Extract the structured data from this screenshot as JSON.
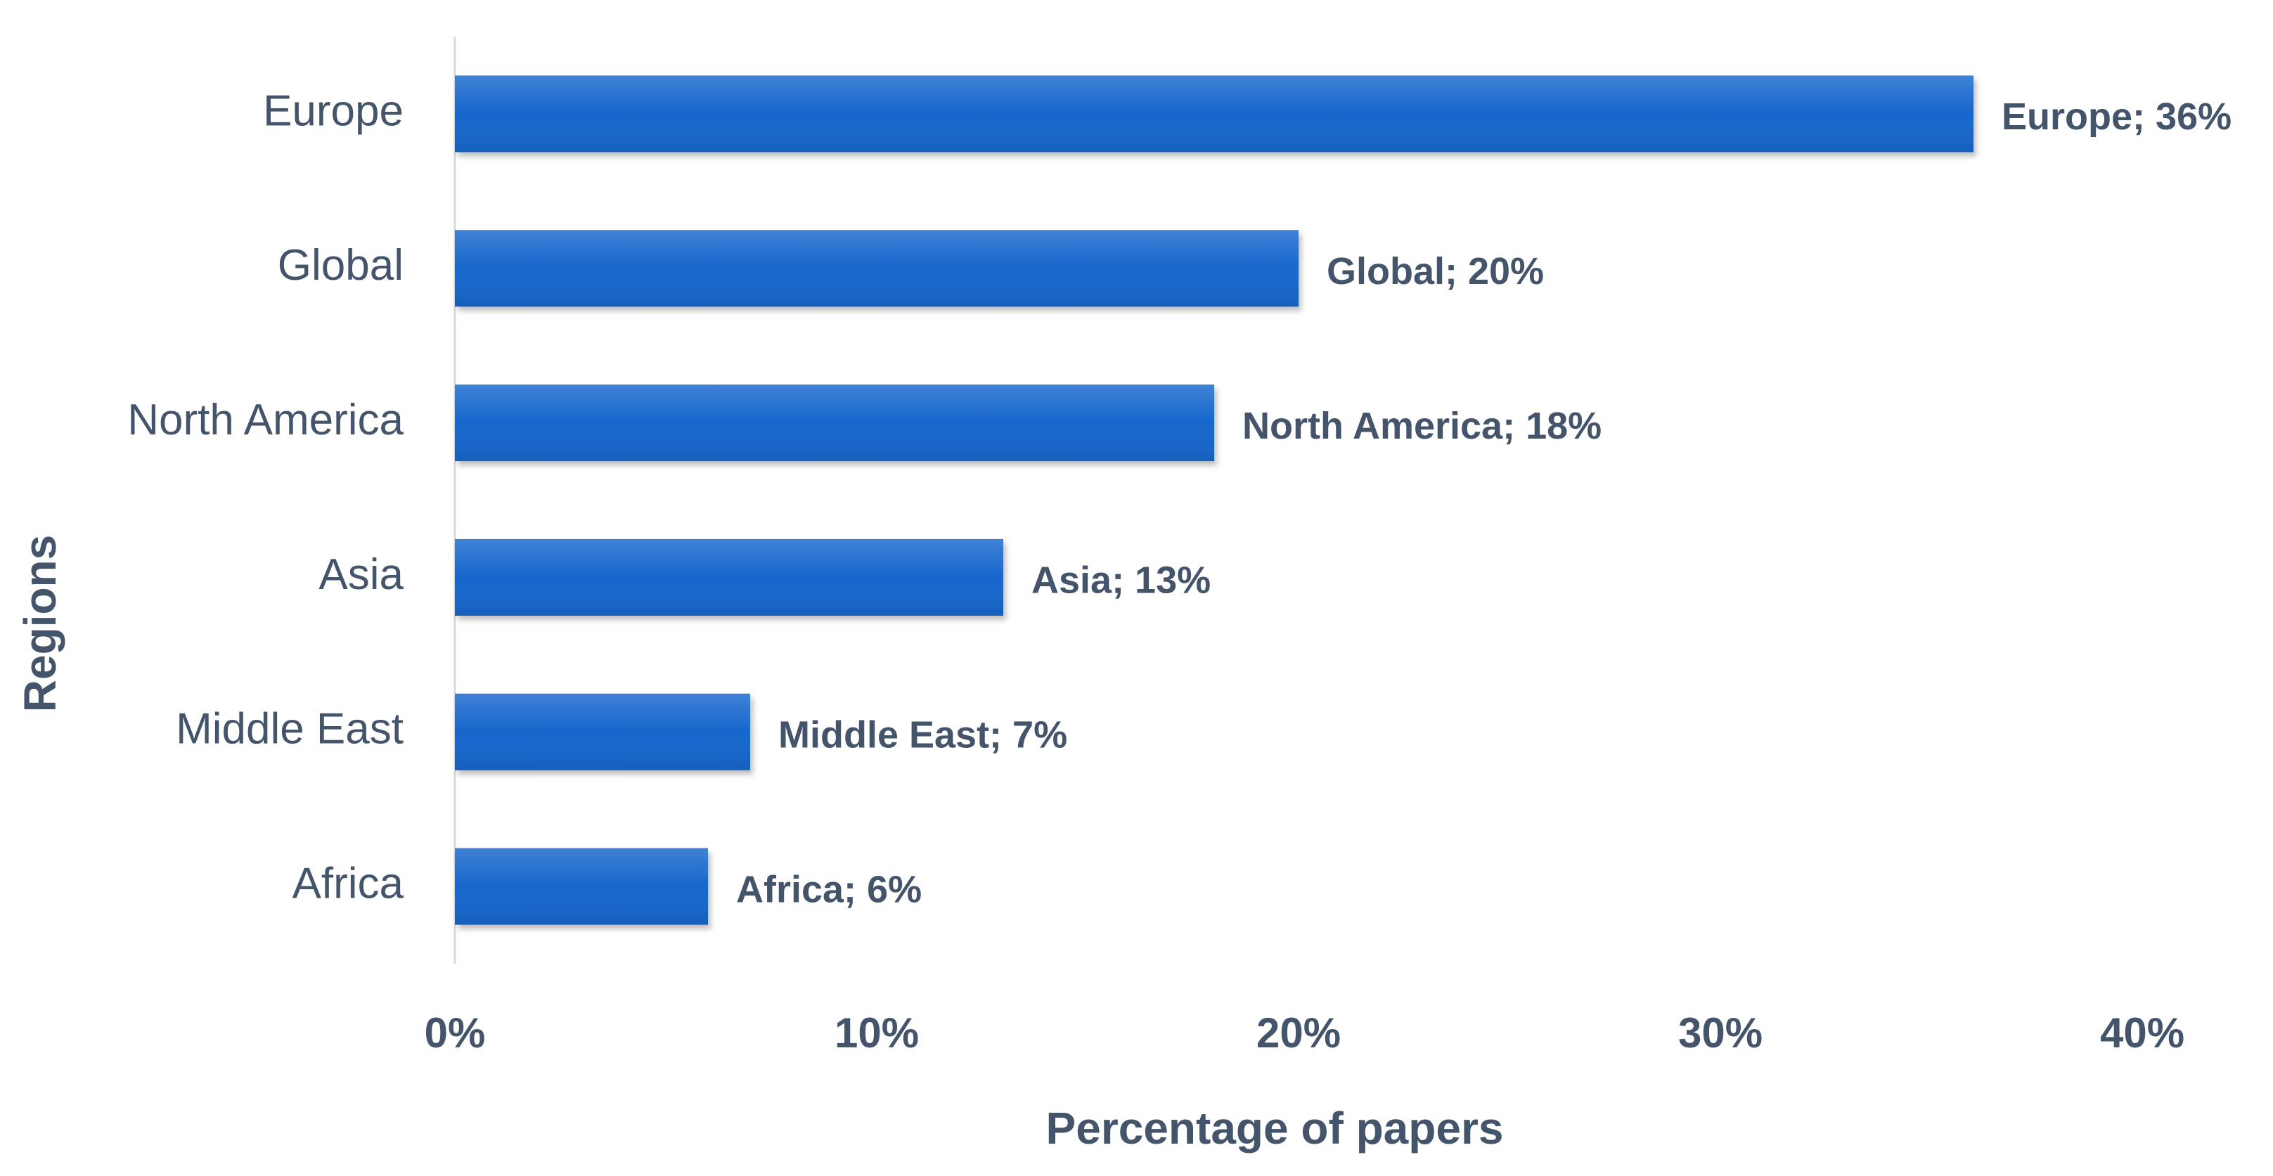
{
  "chart_data": {
    "type": "barh",
    "categories": [
      "Europe",
      "Global",
      "North America",
      "Asia",
      "Middle East",
      "Africa"
    ],
    "values": [
      36,
      20,
      18,
      13,
      7,
      6
    ],
    "value_labels": [
      "Europe; 36%",
      "Global; 20%",
      "North America; 18%",
      "Asia; 13%",
      "Middle East; 7%",
      "Africa; 6%"
    ],
    "color": "#1466cc",
    "xlim": [
      0,
      40
    ],
    "xticks": [
      {
        "value": 0,
        "label": "0%"
      },
      {
        "value": 10,
        "label": "10%"
      },
      {
        "value": 20,
        "label": "20%"
      },
      {
        "value": 30,
        "label": "30%"
      },
      {
        "value": 40,
        "label": "40%"
      }
    ],
    "x_label": "Percentage of papers",
    "y_label": "Regions"
  }
}
